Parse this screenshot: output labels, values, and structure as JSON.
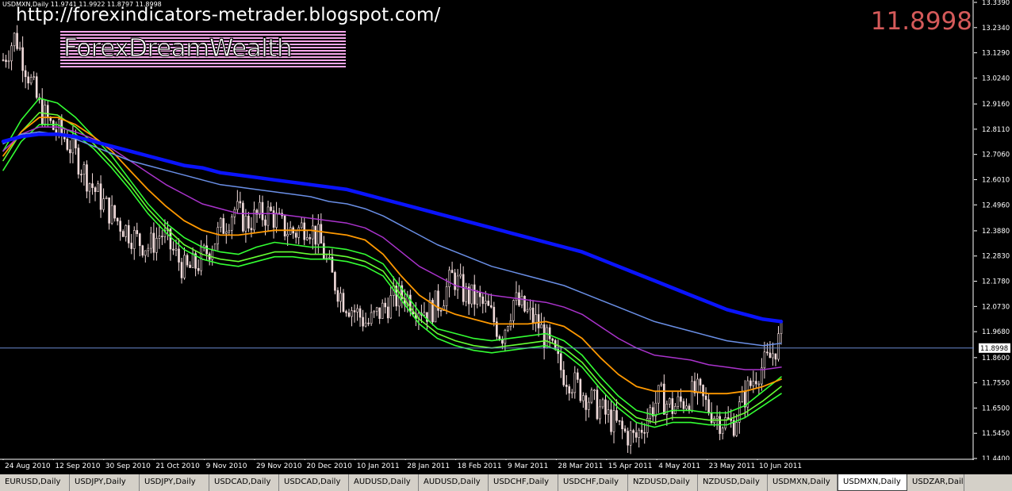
{
  "window": {
    "symbol_header": "USDMXN,Daily  11.9741 11.9922 11.8797 11.8998",
    "url_watermark": "http://forexindicators-metrader.blogspot.com/",
    "brand_watermark": "ForexDreamWealth",
    "current_price": "11.8998"
  },
  "colors": {
    "background": "#000000",
    "axis": "#ffffff",
    "candle": "#f2dcdc",
    "ma_fast": "#33ff33",
    "ma_mid": "#66ff33",
    "ma_orange": "#ff9900",
    "ma_purple": "#aa33cc",
    "ma_lightblue": "#6a8fe6",
    "ma_slow": "#0a14ff",
    "price_line": "#6a8ad0",
    "price_readout": "#d55a5a"
  },
  "tabs": [
    {
      "label": "EURUSD,Daily",
      "active": false
    },
    {
      "label": "USDJPY,Daily",
      "active": false
    },
    {
      "label": "USDJPY,Daily",
      "active": false
    },
    {
      "label": "USDCAD,Daily",
      "active": false
    },
    {
      "label": "USDCAD,Daily",
      "active": false
    },
    {
      "label": "AUDUSD,Daily",
      "active": false
    },
    {
      "label": "AUDUSD,Daily",
      "active": false
    },
    {
      "label": "USDCHF,Daily",
      "active": false
    },
    {
      "label": "USDCHF,Daily",
      "active": false
    },
    {
      "label": "NZDUSD,Daily",
      "active": false
    },
    {
      "label": "NZDUSD,Daily",
      "active": false
    },
    {
      "label": "USDMXN,Daily",
      "active": false
    },
    {
      "label": "USDMXN,Daily",
      "active": true
    },
    {
      "label": "USDZAR,Daily",
      "active": false
    }
  ],
  "chart_data": {
    "type": "line",
    "ylim": [
      11.44,
      13.339
    ],
    "current_price": 11.8998,
    "y_ticks": [
      "13.3390",
      "13.2340",
      "13.1290",
      "13.0240",
      "12.9160",
      "12.8110",
      "12.7060",
      "12.6010",
      "12.4960",
      "12.3880",
      "12.2830",
      "12.1780",
      "12.0730",
      "11.9680",
      "11.8600",
      "11.7550",
      "11.6500",
      "11.5450",
      "11.4400"
    ],
    "x_ticks": [
      "24 Aug 2010",
      "12 Sep 2010",
      "30 Sep 2010",
      "21 Oct 2010",
      "9 Nov 2010",
      "29 Nov 2010",
      "20 Dec 2010",
      "10 Jan 2011",
      "28 Jan 2011",
      "18 Feb 2011",
      "9 Mar 2011",
      "28 Mar 2011",
      "15 Apr 2011",
      "4 May 2011",
      "23 May 2011",
      "10 Jun 2011"
    ],
    "close_series": [
      13.1,
      13.2,
      13.05,
      12.9,
      12.82,
      12.78,
      12.7,
      12.6,
      12.52,
      12.45,
      12.4,
      12.35,
      12.32,
      12.38,
      12.3,
      12.22,
      12.25,
      12.32,
      12.4,
      12.48,
      12.42,
      12.45,
      12.46,
      12.4,
      12.38,
      12.42,
      12.35,
      12.2,
      12.1,
      12.05,
      12.0,
      12.05,
      12.1,
      12.12,
      12.08,
      12.05,
      12.1,
      12.2,
      12.12,
      12.1,
      12.05,
      11.95,
      12.1,
      12.05,
      12.0,
      11.9,
      11.8,
      11.75,
      11.7,
      11.65,
      11.6,
      11.55,
      11.52,
      11.62,
      11.7,
      11.65,
      11.68,
      11.72,
      11.65,
      11.6,
      11.58,
      11.7,
      11.8,
      11.85,
      11.95
    ],
    "series": [
      {
        "color": "ma_fast",
        "values": [
          12.72,
          12.85,
          12.94,
          12.92,
          12.86,
          12.78,
          12.7,
          12.6,
          12.5,
          12.42,
          12.36,
          12.32,
          12.3,
          12.29,
          12.32,
          12.34,
          12.33,
          12.32,
          12.32,
          12.31,
          12.29,
          12.25,
          12.15,
          12.05,
          11.98,
          11.96,
          11.94,
          11.93,
          11.94,
          11.95,
          11.96,
          11.93,
          11.87,
          11.78,
          11.7,
          11.64,
          11.62,
          11.64,
          11.64,
          11.63,
          11.63,
          11.66,
          11.72,
          11.78
        ]
      },
      {
        "color": "ma_mid",
        "values": [
          12.68,
          12.8,
          12.88,
          12.87,
          12.82,
          12.75,
          12.67,
          12.58,
          12.48,
          12.4,
          12.33,
          12.29,
          12.27,
          12.26,
          12.28,
          12.3,
          12.3,
          12.29,
          12.29,
          12.28,
          12.26,
          12.22,
          12.12,
          12.02,
          11.96,
          11.93,
          11.91,
          11.9,
          11.91,
          11.92,
          11.93,
          11.9,
          11.84,
          11.75,
          11.67,
          11.61,
          11.59,
          11.61,
          11.61,
          11.6,
          11.6,
          11.63,
          11.68,
          11.74
        ]
      },
      {
        "color": "ma_fast",
        "values": [
          12.64,
          12.76,
          12.83,
          12.83,
          12.79,
          12.73,
          12.65,
          12.56,
          12.46,
          12.38,
          12.31,
          12.27,
          12.25,
          12.24,
          12.26,
          12.28,
          12.28,
          12.27,
          12.27,
          12.26,
          12.24,
          12.2,
          12.1,
          12.0,
          11.94,
          11.91,
          11.89,
          11.88,
          11.89,
          11.9,
          11.91,
          11.88,
          11.82,
          11.73,
          11.65,
          11.59,
          11.57,
          11.59,
          11.59,
          11.58,
          11.58,
          11.61,
          11.66,
          11.71
        ]
      },
      {
        "color": "ma_orange",
        "values": [
          12.7,
          12.8,
          12.86,
          12.86,
          12.83,
          12.78,
          12.72,
          12.64,
          12.56,
          12.49,
          12.43,
          12.39,
          12.37,
          12.37,
          12.38,
          12.39,
          12.39,
          12.39,
          12.38,
          12.37,
          12.35,
          12.29,
          12.2,
          12.12,
          12.07,
          12.04,
          12.02,
          12.0,
          12.0,
          12.0,
          12.01,
          11.99,
          11.94,
          11.86,
          11.79,
          11.74,
          11.72,
          11.72,
          11.72,
          11.71,
          11.71,
          11.72,
          11.74,
          11.77
        ]
      },
      {
        "color": "ma_purple",
        "values": [
          12.72,
          12.79,
          12.82,
          12.82,
          12.8,
          12.77,
          12.73,
          12.68,
          12.63,
          12.58,
          12.54,
          12.5,
          12.48,
          12.46,
          12.46,
          12.46,
          12.45,
          12.44,
          12.43,
          12.42,
          12.4,
          12.36,
          12.3,
          12.24,
          12.2,
          12.16,
          12.14,
          12.12,
          12.11,
          12.1,
          12.09,
          12.07,
          12.04,
          11.99,
          11.94,
          11.9,
          11.87,
          11.86,
          11.85,
          11.83,
          11.82,
          11.81,
          11.81,
          11.82
        ]
      },
      {
        "color": "ma_lightblue",
        "values": [
          12.75,
          12.79,
          12.8,
          12.79,
          12.77,
          12.74,
          12.71,
          12.68,
          12.66,
          12.64,
          12.62,
          12.6,
          12.58,
          12.57,
          12.56,
          12.55,
          12.54,
          12.53,
          12.51,
          12.5,
          12.48,
          12.45,
          12.41,
          12.37,
          12.33,
          12.3,
          12.27,
          12.24,
          12.22,
          12.2,
          12.18,
          12.16,
          12.13,
          12.1,
          12.07,
          12.04,
          12.01,
          11.99,
          11.97,
          11.95,
          11.93,
          11.92,
          11.91,
          11.92
        ]
      },
      {
        "color": "ma_slow",
        "values": [
          12.76,
          12.78,
          12.79,
          12.79,
          12.78,
          12.76,
          12.74,
          12.72,
          12.7,
          12.68,
          12.66,
          12.65,
          12.63,
          12.62,
          12.61,
          12.6,
          12.59,
          12.58,
          12.57,
          12.56,
          12.54,
          12.52,
          12.5,
          12.48,
          12.46,
          12.44,
          12.42,
          12.4,
          12.38,
          12.36,
          12.34,
          12.32,
          12.3,
          12.27,
          12.24,
          12.21,
          12.18,
          12.15,
          12.12,
          12.09,
          12.06,
          12.04,
          12.02,
          12.01
        ]
      }
    ]
  }
}
